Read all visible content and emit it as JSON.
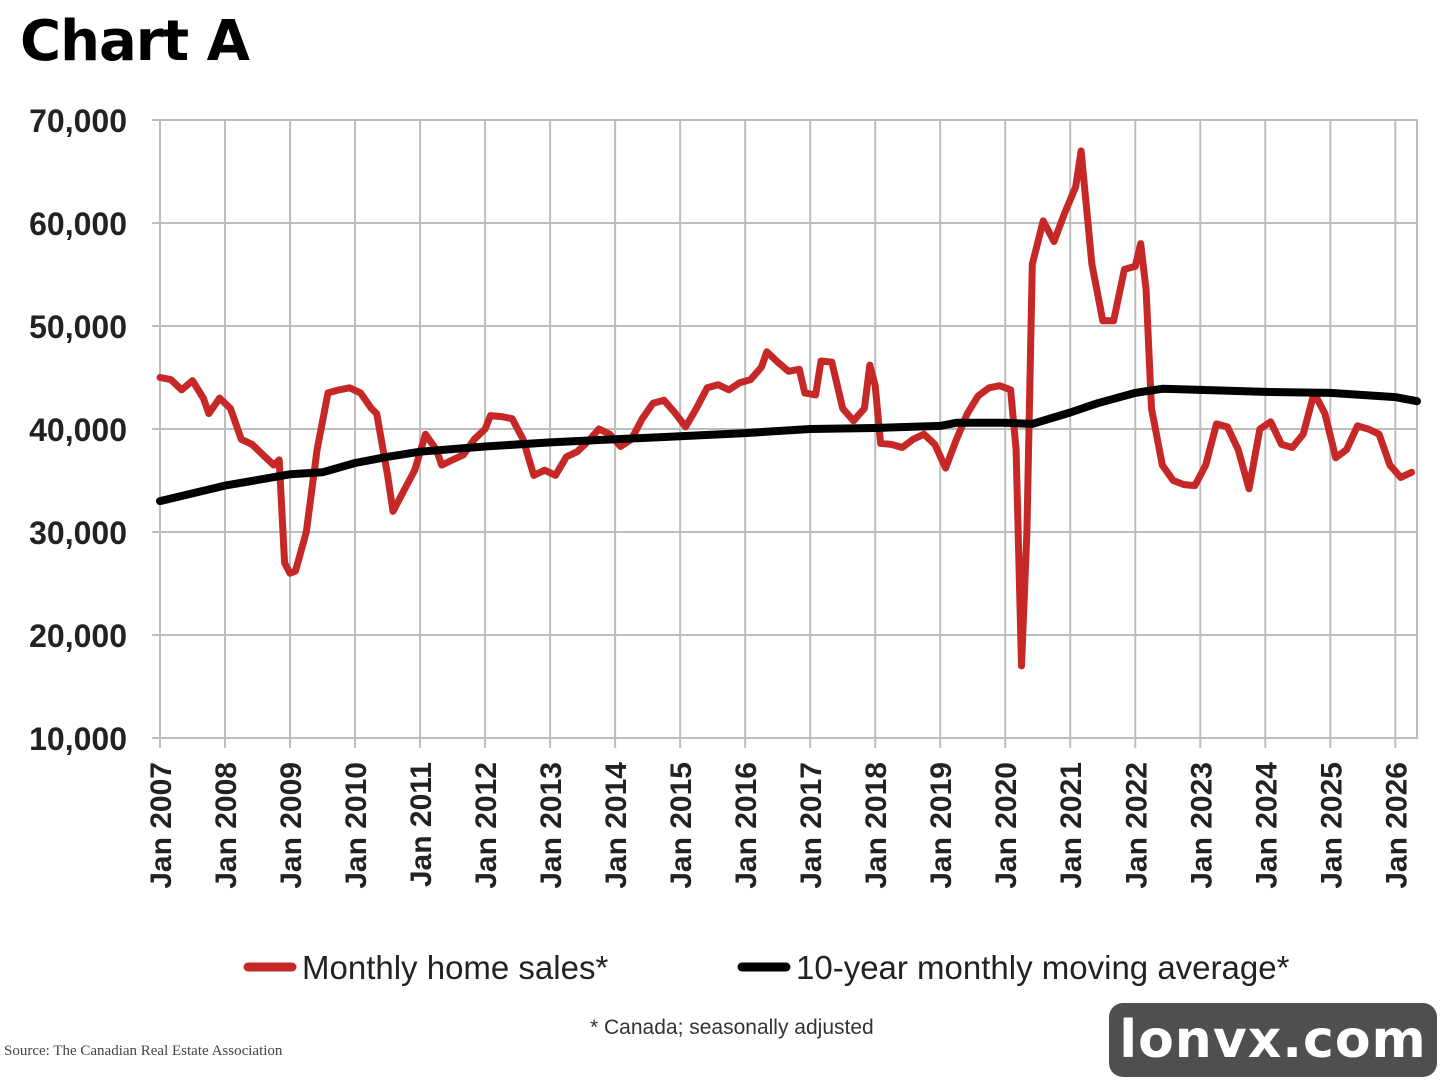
{
  "chart_data": {
    "type": "line",
    "title": "Chart A",
    "ylim": [
      10000,
      70000
    ],
    "yticks": [
      "70,000",
      "60,000",
      "50,000",
      "40,000",
      "30,000",
      "20,000",
      "10,000"
    ],
    "ytick_values": [
      70000,
      60000,
      50000,
      40000,
      30000,
      20000,
      10000
    ],
    "xlim": [
      "2007-01",
      "2026-05"
    ],
    "xticks": [
      "Jan 2007",
      "Jan 2008",
      "Jan 2009",
      "Jan 2010",
      "Jan 2011",
      "Jan 2012",
      "Jan 2013",
      "Jan 2014",
      "Jan 2015",
      "Jan 2016",
      "Jan 2017",
      "Jan 2018",
      "Jan 2019",
      "Jan 2020",
      "Jan 2021",
      "Jan 2022",
      "Jan 2023",
      "Jan 2024",
      "Jan 2025",
      "Jan 2026"
    ],
    "grid": true,
    "legend_position": "bottom",
    "series": [
      {
        "name": "Monthly home sales*",
        "color": "#c62828",
        "points": [
          [
            "2007-01",
            45000
          ],
          [
            "2007-03",
            44800
          ],
          [
            "2007-05",
            43800
          ],
          [
            "2007-07",
            44700
          ],
          [
            "2007-09",
            43000
          ],
          [
            "2007-10",
            41500
          ],
          [
            "2007-12",
            43000
          ],
          [
            "2008-02",
            42000
          ],
          [
            "2008-04",
            39000
          ],
          [
            "2008-06",
            38500
          ],
          [
            "2008-08",
            37500
          ],
          [
            "2008-10",
            36500
          ],
          [
            "2008-11",
            37000
          ],
          [
            "2008-12",
            27000
          ],
          [
            "2009-01",
            26000
          ],
          [
            "2009-02",
            26200
          ],
          [
            "2009-04",
            30000
          ],
          [
            "2009-06",
            38000
          ],
          [
            "2009-08",
            43500
          ],
          [
            "2009-10",
            43800
          ],
          [
            "2009-12",
            44000
          ],
          [
            "2010-02",
            43500
          ],
          [
            "2010-04",
            42000
          ],
          [
            "2010-05",
            41500
          ],
          [
            "2010-07",
            35500
          ],
          [
            "2010-08",
            32000
          ],
          [
            "2010-10",
            34000
          ],
          [
            "2010-12",
            36000
          ],
          [
            "2011-02",
            39500
          ],
          [
            "2011-04",
            38000
          ],
          [
            "2011-05",
            36500
          ],
          [
            "2011-07",
            37000
          ],
          [
            "2011-09",
            37500
          ],
          [
            "2011-11",
            39000
          ],
          [
            "2012-01",
            40000
          ],
          [
            "2012-02",
            41300
          ],
          [
            "2012-04",
            41200
          ],
          [
            "2012-06",
            41000
          ],
          [
            "2012-08",
            39000
          ],
          [
            "2012-10",
            35500
          ],
          [
            "2012-12",
            36000
          ],
          [
            "2013-02",
            35500
          ],
          [
            "2013-04",
            37300
          ],
          [
            "2013-06",
            37800
          ],
          [
            "2013-08",
            38800
          ],
          [
            "2013-10",
            40000
          ],
          [
            "2013-12",
            39500
          ],
          [
            "2014-02",
            38300
          ],
          [
            "2014-04",
            39000
          ],
          [
            "2014-06",
            41000
          ],
          [
            "2014-08",
            42500
          ],
          [
            "2014-10",
            42800
          ],
          [
            "2014-12",
            41600
          ],
          [
            "2015-02",
            40200
          ],
          [
            "2015-04",
            42000
          ],
          [
            "2015-06",
            44000
          ],
          [
            "2015-08",
            44300
          ],
          [
            "2015-10",
            43800
          ],
          [
            "2015-12",
            44500
          ],
          [
            "2016-02",
            44800
          ],
          [
            "2016-04",
            46000
          ],
          [
            "2016-05",
            47500
          ],
          [
            "2016-07",
            46500
          ],
          [
            "2016-09",
            45600
          ],
          [
            "2016-11",
            45800
          ],
          [
            "2016-12",
            43500
          ],
          [
            "2017-02",
            43300
          ],
          [
            "2017-03",
            46600
          ],
          [
            "2017-05",
            46500
          ],
          [
            "2017-07",
            42000
          ],
          [
            "2017-09",
            40800
          ],
          [
            "2017-11",
            42000
          ],
          [
            "2017-12",
            46200
          ],
          [
            "2018-01",
            44200
          ],
          [
            "2018-02",
            38600
          ],
          [
            "2018-04",
            38500
          ],
          [
            "2018-06",
            38200
          ],
          [
            "2018-08",
            39000
          ],
          [
            "2018-10",
            39500
          ],
          [
            "2018-12",
            38500
          ],
          [
            "2019-02",
            36200
          ],
          [
            "2019-04",
            39000
          ],
          [
            "2019-06",
            41500
          ],
          [
            "2019-08",
            43200
          ],
          [
            "2019-10",
            44000
          ],
          [
            "2019-12",
            44200
          ],
          [
            "2020-02",
            43800
          ],
          [
            "2020-03",
            38000
          ],
          [
            "2020-04",
            17000
          ],
          [
            "2020-05",
            30000
          ],
          [
            "2020-06",
            56000
          ],
          [
            "2020-08",
            60200
          ],
          [
            "2020-10",
            58200
          ],
          [
            "2020-12",
            61000
          ],
          [
            "2021-02",
            63500
          ],
          [
            "2021-03",
            67000
          ],
          [
            "2021-05",
            56000
          ],
          [
            "2021-07",
            50500
          ],
          [
            "2021-09",
            50500
          ],
          [
            "2021-11",
            55500
          ],
          [
            "2022-01",
            55800
          ],
          [
            "2022-02",
            58000
          ],
          [
            "2022-03",
            53500
          ],
          [
            "2022-04",
            42000
          ],
          [
            "2022-06",
            36500
          ],
          [
            "2022-08",
            35000
          ],
          [
            "2022-10",
            34600
          ],
          [
            "2022-12",
            34500
          ],
          [
            "2023-02",
            36500
          ],
          [
            "2023-04",
            40500
          ],
          [
            "2023-06",
            40200
          ],
          [
            "2023-08",
            38000
          ],
          [
            "2023-10",
            34200
          ],
          [
            "2023-12",
            40000
          ],
          [
            "2024-02",
            40700
          ],
          [
            "2024-04",
            38500
          ],
          [
            "2024-06",
            38200
          ],
          [
            "2024-08",
            39500
          ],
          [
            "2024-10",
            43500
          ],
          [
            "2024-12",
            41500
          ],
          [
            "2025-02",
            37200
          ],
          [
            "2025-04",
            38000
          ],
          [
            "2025-06",
            40300
          ],
          [
            "2025-08",
            40000
          ],
          [
            "2025-10",
            39500
          ],
          [
            "2025-12",
            36500
          ],
          [
            "2026-02",
            35300
          ],
          [
            "2026-04",
            35800
          ]
        ]
      },
      {
        "name": "10-year monthly moving average*",
        "color": "#000000",
        "points": [
          [
            "2007-01",
            33000
          ],
          [
            "2008-01",
            34500
          ],
          [
            "2009-01",
            35600
          ],
          [
            "2009-07",
            35800
          ],
          [
            "2010-01",
            36700
          ],
          [
            "2010-07",
            37300
          ],
          [
            "2011-01",
            37800
          ],
          [
            "2012-01",
            38300
          ],
          [
            "2013-01",
            38700
          ],
          [
            "2014-01",
            39000
          ],
          [
            "2015-01",
            39300
          ],
          [
            "2016-01",
            39600
          ],
          [
            "2017-01",
            40000
          ],
          [
            "2018-01",
            40100
          ],
          [
            "2019-01",
            40300
          ],
          [
            "2019-04",
            40600
          ],
          [
            "2020-01",
            40600
          ],
          [
            "2020-06",
            40500
          ],
          [
            "2021-01",
            41600
          ],
          [
            "2021-06",
            42500
          ],
          [
            "2022-01",
            43500
          ],
          [
            "2022-06",
            43900
          ],
          [
            "2023-01",
            43800
          ],
          [
            "2024-01",
            43600
          ],
          [
            "2025-01",
            43500
          ],
          [
            "2026-01",
            43100
          ],
          [
            "2026-05",
            42700
          ]
        ]
      }
    ],
    "footnote": "* Canada; seasonally adjusted",
    "source": "Source: The Canadian Real Estate Association"
  },
  "watermark": "lonvx.com"
}
